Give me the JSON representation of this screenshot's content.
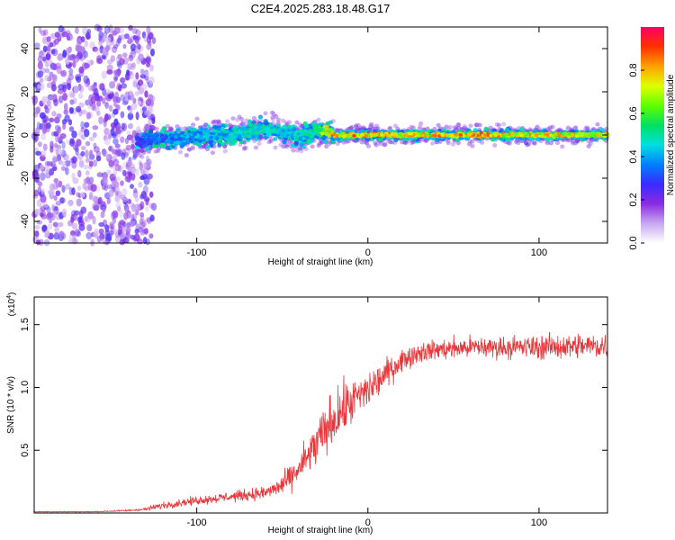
{
  "chart_data": [
    {
      "type": "heatmap",
      "title": "C2E4.2025.283.18.48.G17",
      "xlabel": "Height of straight line (km)",
      "ylabel": "Frequency (Hz)",
      "xlim": [
        -195,
        140
      ],
      "ylim": [
        -50,
        50
      ],
      "xticks": [
        -100,
        0,
        100
      ],
      "xtick_labels": [
        "-100",
        "0",
        "100"
      ],
      "yticks": [
        -40,
        -20,
        0,
        20,
        40
      ],
      "ytick_labels": [
        "-40",
        "-20",
        "0",
        "20",
        "40"
      ],
      "colorbar": {
        "label": "Normalized spectral amplitude",
        "range": [
          0,
          1
        ],
        "ticks": [
          0.0,
          0.2,
          0.4,
          0.6,
          0.8
        ],
        "tick_labels": [
          "0.0",
          "0.2",
          "0.4",
          "0.6",
          "0.8"
        ],
        "colors": [
          "#ffffff",
          "#c8a8f0",
          "#8a2be2",
          "#3a2bff",
          "#0080ff",
          "#00e0e0",
          "#00e060",
          "#60ff00",
          "#e0ff00",
          "#ffa000",
          "#ff3000",
          "#ff0066"
        ]
      },
      "ridge": {
        "x": [
          -135,
          -120,
          -100,
          -80,
          -60,
          -50,
          -40,
          -30,
          -22,
          -20,
          0,
          20,
          40,
          60,
          80,
          100,
          120,
          140
        ],
        "freq": [
          -3,
          -2,
          -1,
          0,
          3,
          1,
          -1,
          2,
          1,
          0,
          0,
          0,
          0,
          0,
          0,
          0,
          0,
          0
        ],
        "amplitude": [
          0.3,
          0.4,
          0.45,
          0.5,
          0.55,
          0.5,
          0.5,
          0.55,
          0.85,
          0.9,
          0.9,
          0.85,
          0.85,
          0.9,
          0.85,
          0.85,
          0.85,
          0.8
        ]
      },
      "noise_region": {
        "x_range": [
          -195,
          -125
        ],
        "freq_range": [
          -50,
          50
        ],
        "amplitude": 0.15
      }
    },
    {
      "type": "line",
      "xlabel": "Height of straight line (km)",
      "ylabel": "SNR (10 * v/v)",
      "scale_note": "(x10",
      "scale_exp": "4",
      "scale_close": ")",
      "xlim": [
        -195,
        140
      ],
      "ylim": [
        0,
        1.72
      ],
      "xticks": [
        -100,
        0,
        100
      ],
      "xtick_labels": [
        "-100",
        "0",
        "100"
      ],
      "yticks": [
        0.5,
        1.0,
        1.5
      ],
      "ytick_labels": [
        "0.5",
        "1.0",
        "1.5"
      ],
      "color": "#e8363a",
      "series": [
        {
          "name": "SNR",
          "x": [
            -195,
            -160,
            -140,
            -130,
            -120,
            -100,
            -80,
            -60,
            -50,
            -40,
            -30,
            -20,
            -10,
            0,
            10,
            20,
            30,
            40,
            60,
            80,
            100,
            120,
            140
          ],
          "mean": [
            0.01,
            0.01,
            0.02,
            0.03,
            0.06,
            0.1,
            0.13,
            0.16,
            0.22,
            0.35,
            0.55,
            0.75,
            0.88,
            0.98,
            1.1,
            1.22,
            1.28,
            1.3,
            1.32,
            1.32,
            1.32,
            1.33,
            1.33
          ],
          "spread": [
            0.005,
            0.005,
            0.01,
            0.02,
            0.04,
            0.05,
            0.06,
            0.08,
            0.12,
            0.18,
            0.28,
            0.32,
            0.28,
            0.22,
            0.18,
            0.13,
            0.12,
            0.12,
            0.13,
            0.13,
            0.14,
            0.15,
            0.16
          ]
        }
      ]
    }
  ]
}
